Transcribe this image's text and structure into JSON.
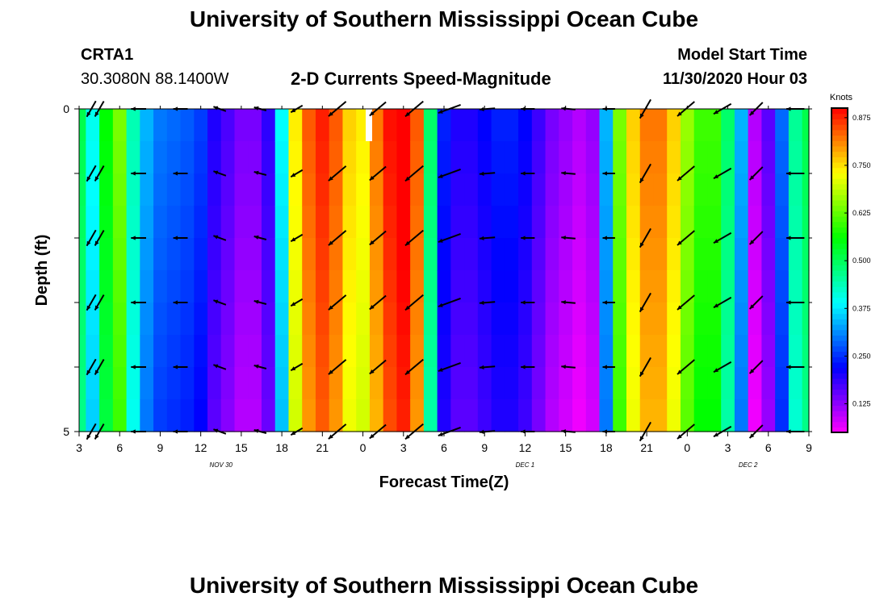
{
  "header": {
    "title_top": "University of Southern Mississippi Ocean Cube",
    "title_bottom": "University of Southern Mississippi Ocean Cube",
    "station_id": "CRTA1",
    "station_coords": "30.3080N 88.1400W",
    "chart_title": "2-D Currents Speed-Magnitude",
    "model_label": "Model Start Time",
    "model_time": "11/30/2020 Hour 03"
  },
  "chart_data": {
    "type": "heatmap",
    "title": "2-D Currents Speed-Magnitude",
    "xlabel": "Forecast Time(Z)",
    "ylabel": "Depth (ft)",
    "x_range_hours": [
      0,
      54
    ],
    "y_range": [
      0,
      5
    ],
    "y_ticks": [
      {
        "value": 0,
        "label": "0"
      },
      {
        "value": 5,
        "label": "5"
      }
    ],
    "x_ticks": [
      {
        "hour": 0,
        "label": "3"
      },
      {
        "hour": 3,
        "label": "6"
      },
      {
        "hour": 6,
        "label": "9"
      },
      {
        "hour": 9,
        "label": "12"
      },
      {
        "hour": 12,
        "label": "15"
      },
      {
        "hour": 15,
        "label": "18"
      },
      {
        "hour": 18,
        "label": "21"
      },
      {
        "hour": 21,
        "label": "0"
      },
      {
        "hour": 24,
        "label": "3"
      },
      {
        "hour": 27,
        "label": "6"
      },
      {
        "hour": 30,
        "label": "9"
      },
      {
        "hour": 33,
        "label": "12"
      },
      {
        "hour": 36,
        "label": "15"
      },
      {
        "hour": 39,
        "label": "18"
      },
      {
        "hour": 42,
        "label": "21"
      },
      {
        "hour": 45,
        "label": "0"
      },
      {
        "hour": 48,
        "label": "3"
      },
      {
        "hour": 51,
        "label": "6"
      },
      {
        "hour": 54,
        "label": "9"
      }
    ],
    "date_labels": [
      {
        "hour": 10.5,
        "label": "NOV 30"
      },
      {
        "hour": 33,
        "label": "DEC 1"
      },
      {
        "hour": 49.5,
        "label": "DEC 2"
      }
    ],
    "colorbar": {
      "unit": "Knots",
      "min": 0.05,
      "max": 0.9,
      "ticks": [
        "0.125",
        "0.250",
        "0.375",
        "0.500",
        "0.625",
        "0.750",
        "0.875"
      ]
    },
    "speed_by_hour": [
      0.47,
      0.36,
      0.52,
      0.6,
      0.4,
      0.3,
      0.26,
      0.25,
      0.24,
      0.22,
      0.16,
      0.13,
      0.1,
      0.1,
      0.15,
      0.35,
      0.7,
      0.8,
      0.84,
      0.8,
      0.72,
      0.7,
      0.78,
      0.85,
      0.88,
      0.8,
      0.45,
      0.2,
      0.16,
      0.16,
      0.18,
      0.2,
      0.2,
      0.18,
      0.14,
      0.1,
      0.08,
      0.06,
      0.08,
      0.3,
      0.6,
      0.72,
      0.78,
      0.78,
      0.72,
      0.62,
      0.56,
      0.56,
      0.45,
      0.3,
      0.06,
      0.12,
      0.25,
      0.42,
      0.47
    ],
    "surface_bump": 0.04,
    "arrow_hours": [
      0.9,
      1.5,
      4.4,
      7.5,
      10.4,
      13.4,
      16.1,
      19.1,
      22.1,
      24.8,
      27.4,
      30.2,
      33.2,
      36.2,
      39.2,
      41.9,
      44.9,
      47.6,
      50.1,
      53.0
    ],
    "arrow_depths": [
      0,
      1,
      2,
      3,
      4,
      5
    ],
    "arrow_direction_deg_by_col": [
      120,
      120,
      180,
      180,
      200,
      195,
      150,
      140,
      140,
      140,
      160,
      175,
      180,
      185,
      180,
      120,
      140,
      150,
      135,
      180
    ],
    "arrow_speed_by_col": [
      0.47,
      0.45,
      0.26,
      0.22,
      0.14,
      0.1,
      0.15,
      0.8,
      0.7,
      0.85,
      0.88,
      0.3,
      0.18,
      0.2,
      0.08,
      0.72,
      0.78,
      0.62,
      0.5,
      0.47
    ]
  },
  "colors": {
    "arrow": "#000000",
    "marker": "#ffffff"
  }
}
